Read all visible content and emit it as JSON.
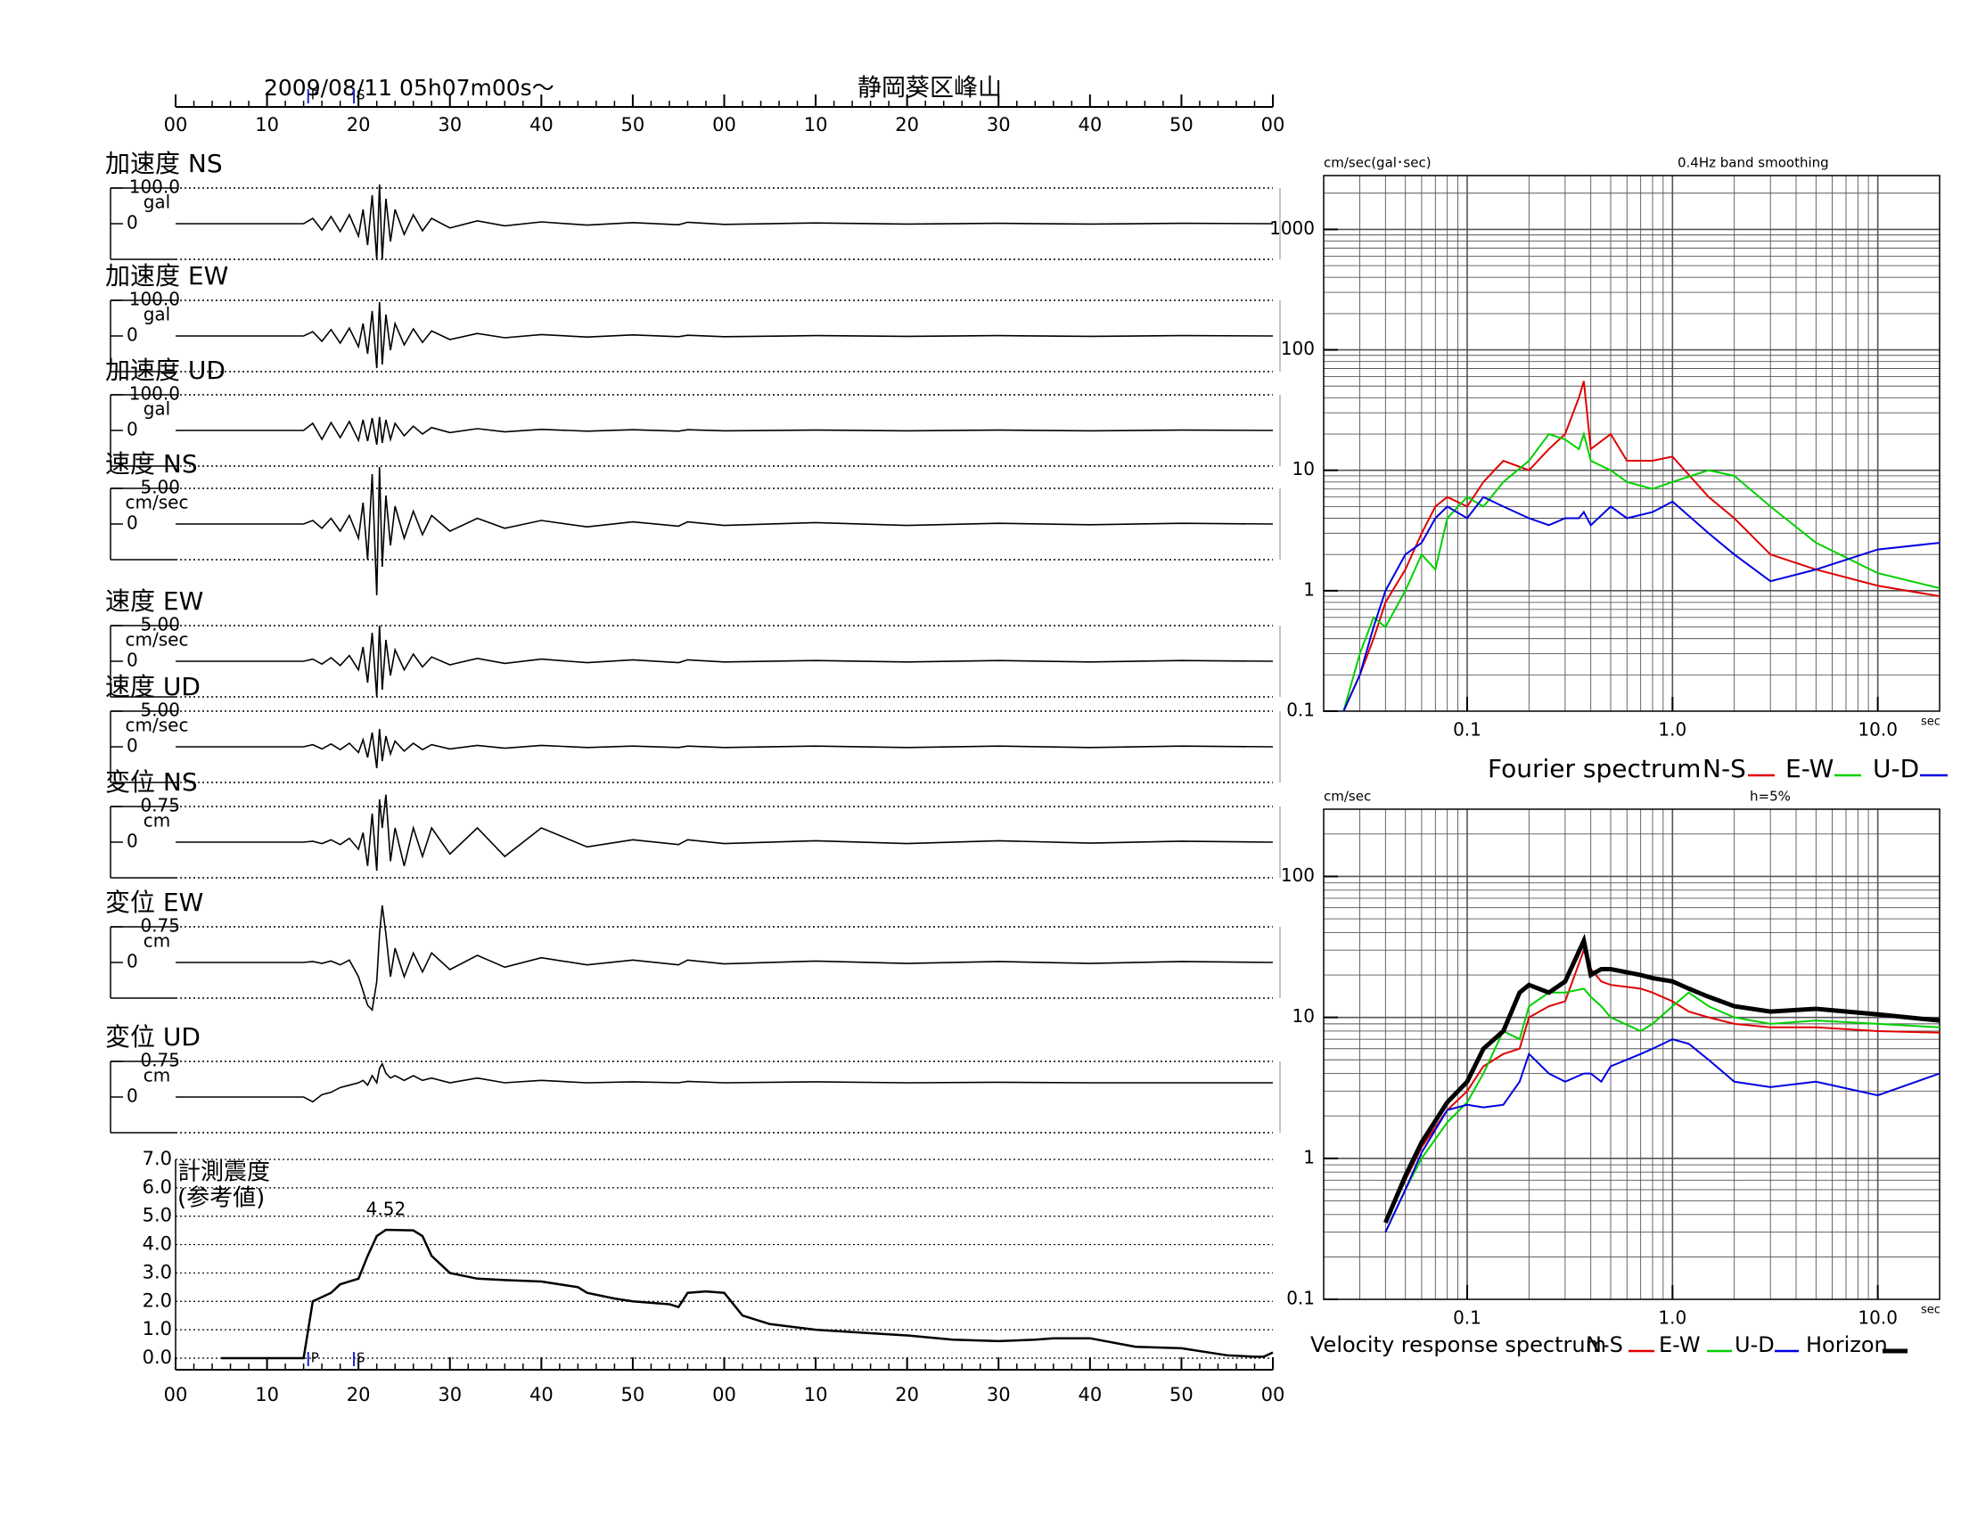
{
  "chart_data": [
    {
      "type": "line",
      "title": "2009/08/11  05h07m00s〜",
      "subtitle": "静岡葵区峰山",
      "xlim": [
        0,
        120
      ],
      "xticks": [
        {
          "value": 0,
          "label": "00"
        },
        {
          "value": 10,
          "label": "10"
        },
        {
          "value": 20,
          "label": "20"
        },
        {
          "value": 30,
          "label": "30"
        },
        {
          "value": 40,
          "label": "40"
        },
        {
          "value": 50,
          "label": "50"
        },
        {
          "value": 60,
          "label": "00"
        },
        {
          "value": 70,
          "label": "10"
        },
        {
          "value": 80,
          "label": "20"
        },
        {
          "value": 90,
          "label": "30"
        },
        {
          "value": 100,
          "label": "40"
        },
        {
          "value": 110,
          "label": "50"
        },
        {
          "value": 120,
          "label": "00"
        }
      ],
      "markers": [
        {
          "label": "P",
          "x": 14.5
        },
        {
          "label": "S",
          "x": 19.5
        }
      ],
      "marker_color": "#2020d0",
      "x": [
        0,
        14,
        15,
        16,
        17,
        18,
        19,
        20,
        20.5,
        21,
        21.5,
        22,
        22.3,
        22.6,
        23,
        23.5,
        24,
        25,
        26,
        27,
        28,
        30,
        33,
        36,
        40,
        45,
        50,
        55,
        56,
        60,
        70,
        80,
        90,
        100,
        110,
        120
      ],
      "series": [
        {
          "name": "加速度 NS",
          "unit": "gal",
          "color": "#000000",
          "ylim": [
            -100,
            100
          ],
          "yticks": [
            0,
            {
              "value": 100,
              "label": "100.0"
            }
          ],
          "values": [
            0,
            0,
            15,
            -18,
            20,
            -22,
            25,
            -35,
            40,
            -60,
            80,
            -100,
            110,
            -100,
            70,
            -50,
            40,
            -30,
            25,
            -20,
            15,
            -12,
            8,
            -6,
            5,
            -4,
            3,
            -3,
            4,
            -2,
            2,
            -1,
            1,
            -1,
            1,
            0
          ]
        },
        {
          "name": "加速度 EW",
          "unit": "gal",
          "color": "#000000",
          "ylim": [
            -100,
            100
          ],
          "yticks": [
            0,
            {
              "value": 100,
              "label": "100.0"
            }
          ],
          "values": [
            0,
            0,
            12,
            -15,
            18,
            -20,
            22,
            -30,
            35,
            -50,
            70,
            -90,
            95,
            -80,
            60,
            -40,
            35,
            -25,
            20,
            -18,
            14,
            -10,
            7,
            -5,
            4,
            -3,
            3,
            -2,
            2,
            -2,
            1,
            -1,
            1,
            -1,
            1,
            0
          ]
        },
        {
          "name": "加速度 UD",
          "unit": "gal",
          "color": "#000000",
          "ylim": [
            -100,
            100
          ],
          "yticks": [
            0,
            {
              "value": 100,
              "label": "100.0"
            }
          ],
          "values": [
            0,
            0,
            20,
            -25,
            22,
            -20,
            25,
            -28,
            30,
            -30,
            35,
            -40,
            38,
            -35,
            30,
            -25,
            20,
            -15,
            12,
            -10,
            8,
            -6,
            5,
            -4,
            3,
            -2,
            2,
            -2,
            2,
            -1,
            1,
            -1,
            1,
            -1,
            1,
            0
          ]
        },
        {
          "name": "速度 NS",
          "unit": "cm/sec",
          "color": "#000000",
          "ylim": [
            -5,
            5
          ],
          "yticks": [
            0,
            {
              "value": 5,
              "label": "5.00"
            }
          ],
          "values": [
            0,
            0,
            0.5,
            -0.6,
            0.8,
            -1,
            1.2,
            -2,
            3,
            -5,
            7,
            -10,
            8,
            -6,
            4,
            -3,
            2.5,
            -2,
            1.8,
            -1.5,
            1.2,
            -1,
            0.8,
            -0.6,
            0.5,
            -0.4,
            0.3,
            -0.3,
            0.3,
            -0.2,
            0.2,
            -0.2,
            0.1,
            -0.1,
            0.1,
            0
          ]
        },
        {
          "name": "速度 EW",
          "unit": "cm/sec",
          "color": "#000000",
          "ylim": [
            -5,
            5
          ],
          "yticks": [
            0,
            {
              "value": 5,
              "label": "5.00"
            }
          ],
          "values": [
            0,
            0,
            0.3,
            -0.4,
            0.5,
            -0.6,
            0.8,
            -1.2,
            2,
            -3,
            4,
            -5,
            5,
            -4,
            3,
            -2,
            1.6,
            -1.2,
            1,
            -0.8,
            0.6,
            -0.5,
            0.4,
            -0.3,
            0.3,
            -0.2,
            0.2,
            -0.2,
            0.2,
            -0.1,
            0.1,
            -0.1,
            0.1,
            -0.1,
            0.1,
            0
          ]
        },
        {
          "name": "速度 UD",
          "unit": "cm/sec",
          "color": "#000000",
          "ylim": [
            -5,
            5
          ],
          "yticks": [
            0,
            {
              "value": 5,
              "label": "5.00"
            }
          ],
          "values": [
            0,
            0,
            0.3,
            -0.3,
            0.4,
            -0.4,
            0.5,
            -0.8,
            1,
            -1.5,
            2,
            -3,
            2.5,
            -2,
            1.5,
            -1,
            0.8,
            -0.6,
            0.5,
            -0.4,
            0.3,
            -0.3,
            0.2,
            -0.2,
            0.2,
            -0.1,
            0.1,
            -0.1,
            0.1,
            -0.1,
            0.1,
            -0.1,
            0.1,
            -0.1,
            0.1,
            0
          ]
        },
        {
          "name": "変位 NS",
          "unit": "cm",
          "color": "#000000",
          "ylim": [
            -0.75,
            0.75
          ],
          "yticks": [
            0,
            0.75
          ],
          "values": [
            0,
            0,
            0.02,
            -0.03,
            0.05,
            -0.05,
            0.08,
            -0.15,
            0.2,
            -0.5,
            0.6,
            -0.6,
            0.9,
            0.3,
            1.0,
            -0.4,
            0.3,
            -0.5,
            0.3,
            -0.3,
            0.3,
            -0.25,
            0.3,
            -0.3,
            0.3,
            -0.1,
            0.05,
            -0.05,
            0.05,
            -0.03,
            0.03,
            -0.03,
            0.03,
            -0.02,
            0.02,
            0
          ]
        },
        {
          "name": "変位 EW",
          "unit": "cm",
          "color": "#000000",
          "ylim": [
            -0.75,
            0.75
          ],
          "yticks": [
            0,
            0.75
          ],
          "values": [
            0,
            0,
            0.02,
            -0.02,
            0.03,
            -0.05,
            0.05,
            -0.3,
            -0.6,
            -0.9,
            -1.0,
            -0.4,
            0.6,
            1.2,
            0.6,
            -0.3,
            0.3,
            -0.3,
            0.2,
            -0.2,
            0.2,
            -0.15,
            0.15,
            -0.1,
            0.1,
            -0.05,
            0.05,
            -0.05,
            0.05,
            -0.03,
            0.03,
            -0.02,
            0.02,
            -0.02,
            0.02,
            0
          ]
        },
        {
          "name": "変位 UD",
          "unit": "cm",
          "color": "#000000",
          "ylim": [
            -0.75,
            0.75
          ],
          "yticks": [
            0,
            0.75
          ],
          "values": [
            0,
            0,
            -0.1,
            0.05,
            0.1,
            0.2,
            0.25,
            0.3,
            0.35,
            0.25,
            0.45,
            0.3,
            0.6,
            0.7,
            0.5,
            0.4,
            0.45,
            0.35,
            0.45,
            0.35,
            0.4,
            0.3,
            0.4,
            0.3,
            0.35,
            0.3,
            0.32,
            0.3,
            0.33,
            0.3,
            0.32,
            0.3,
            0.31,
            0.3,
            0.3,
            0.3
          ]
        }
      ]
    },
    {
      "type": "line",
      "title": "計測震度",
      "subtitle": "(参考値)",
      "color": "#000000",
      "xlim": [
        0,
        120
      ],
      "ylim": [
        0,
        7
      ],
      "yticks": [
        {
          "value": 0,
          "label": "0.0"
        },
        {
          "value": 1,
          "label": "1.0"
        },
        {
          "value": 2,
          "label": "2.0"
        },
        {
          "value": 3,
          "label": "3.0"
        },
        {
          "value": 4,
          "label": "4.0"
        },
        {
          "value": 5,
          "label": "5.0"
        },
        {
          "value": 6,
          "label": "6.0"
        },
        {
          "value": 7,
          "label": "7.0"
        }
      ],
      "grid": true,
      "x": [
        5,
        14,
        14.5,
        15,
        17,
        18,
        19,
        20,
        21,
        22,
        23,
        26,
        27,
        28,
        30,
        33,
        36,
        40,
        44,
        45,
        48,
        50,
        54,
        55,
        56,
        58,
        60,
        62,
        65,
        70,
        75,
        80,
        85,
        90,
        94,
        96,
        100,
        105,
        110,
        115,
        118,
        119,
        120
      ],
      "values": [
        0,
        0,
        1,
        2,
        2.3,
        2.6,
        2.7,
        2.8,
        3.6,
        4.3,
        4.52,
        4.5,
        4.3,
        3.6,
        3.0,
        2.8,
        2.75,
        2.7,
        2.5,
        2.3,
        2.1,
        2,
        1.9,
        1.8,
        2.3,
        2.35,
        2.3,
        1.5,
        1.2,
        1,
        0.9,
        0.8,
        0.65,
        0.6,
        0.65,
        0.7,
        0.7,
        0.4,
        0.35,
        0.1,
        0.05,
        0.05,
        0.2
      ]
    },
    {
      "type": "line",
      "title": "Fourier spectrum",
      "ylabel": "cm/sec(gal･sec)",
      "note": "0.4Hz band smoothing",
      "xlabel": "sec",
      "log_x": true,
      "log_y": true,
      "grid": true,
      "xlim": [
        0.02,
        20
      ],
      "ylim": [
        0.1,
        2800
      ],
      "xticks": [
        0.1,
        {
          "value": 1,
          "label": "1.0"
        },
        {
          "value": 10,
          "label": "10.0"
        }
      ],
      "yticks": [
        0.1,
        1,
        10,
        100,
        1000
      ],
      "x": [
        0.025,
        0.03,
        0.035,
        0.04,
        0.05,
        0.06,
        0.07,
        0.08,
        0.1,
        0.12,
        0.15,
        0.2,
        0.25,
        0.3,
        0.35,
        0.37,
        0.4,
        0.5,
        0.6,
        0.8,
        1,
        1.5,
        2,
        3,
        5,
        10,
        20
      ],
      "series": [
        {
          "name": "N-S",
          "color": "#e00000",
          "values": [
            0.1,
            0.2,
            0.4,
            0.8,
            1.5,
            3,
            5,
            6,
            5,
            8,
            12,
            10,
            15,
            20,
            40,
            55,
            15,
            20,
            12,
            12,
            13,
            6,
            4,
            2,
            1.5,
            1.1,
            0.9
          ]
        },
        {
          "name": "E-W",
          "color": "#00d000",
          "values": [
            0.1,
            0.3,
            0.6,
            0.5,
            1,
            2,
            1.5,
            4,
            6,
            5,
            8,
            12,
            20,
            18,
            15,
            20,
            12,
            10,
            8,
            7,
            8,
            10,
            9,
            5,
            2.5,
            1.4,
            1.05
          ]
        },
        {
          "name": "U-D",
          "color": "#0000e0",
          "values": [
            0.1,
            0.2,
            0.5,
            1,
            2,
            2.5,
            4,
            5,
            4,
            6,
            5,
            4,
            3.5,
            4,
            4,
            4.5,
            3.5,
            5,
            4,
            4.5,
            5.5,
            3,
            2,
            1.2,
            1.5,
            2.2,
            2.5
          ]
        }
      ]
    },
    {
      "type": "line",
      "title": "Velocity response spectrum",
      "ylabel": "cm/sec",
      "note": "h=5%",
      "xlabel": "sec",
      "log_x": true,
      "log_y": true,
      "grid": true,
      "xlim": [
        0.02,
        20
      ],
      "ylim": [
        0.1,
        300
      ],
      "xticks": [
        0.1,
        {
          "value": 1,
          "label": "1.0"
        },
        {
          "value": 10,
          "label": "10.0"
        }
      ],
      "yticks": [
        0.1,
        1,
        10,
        100
      ],
      "x": [
        0.04,
        0.05,
        0.06,
        0.08,
        0.1,
        0.12,
        0.15,
        0.18,
        0.2,
        0.25,
        0.3,
        0.37,
        0.4,
        0.45,
        0.5,
        0.7,
        0.8,
        1,
        1.2,
        1.5,
        2,
        3,
        5,
        10,
        20
      ],
      "series": [
        {
          "name": "N-S",
          "color": "#e00000",
          "values": [
            0.35,
            0.7,
            1.2,
            2.2,
            3,
            4.5,
            5.5,
            6,
            10,
            12,
            13,
            30,
            22,
            18,
            17,
            16,
            15,
            13,
            11,
            10,
            9,
            8.5,
            8.5,
            8,
            7.8
          ]
        },
        {
          "name": "E-W",
          "color": "#00d000",
          "values": [
            0.3,
            0.6,
            1,
            1.8,
            2.5,
            4,
            8,
            7,
            12,
            15,
            15,
            16,
            14,
            12,
            10,
            8,
            9,
            12,
            15,
            12,
            10,
            9,
            9.5,
            9,
            8.5
          ]
        },
        {
          "name": "U-D",
          "color": "#0000e0",
          "values": [
            0.3,
            0.6,
            1.1,
            2.2,
            2.4,
            2.3,
            2.4,
            3.5,
            5.5,
            4,
            3.5,
            4,
            4,
            3.5,
            4.5,
            5.5,
            6,
            7,
            6.5,
            5,
            3.5,
            3.2,
            3.5,
            2.8,
            4
          ]
        },
        {
          "name": "Horizon",
          "color": "#000000",
          "line_width": 5,
          "values": [
            0.35,
            0.75,
            1.3,
            2.5,
            3.5,
            6,
            8,
            15,
            17,
            15,
            18,
            35,
            20,
            22,
            22,
            20,
            19,
            18,
            16,
            14,
            12,
            11,
            11.5,
            10.5,
            9.5
          ]
        }
      ]
    }
  ]
}
